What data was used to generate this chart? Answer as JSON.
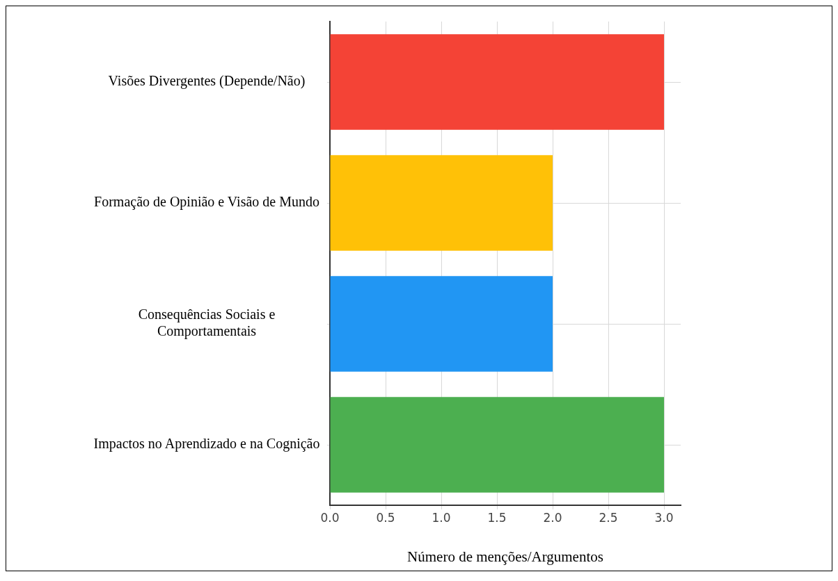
{
  "chart_data": {
    "type": "bar",
    "orientation": "horizontal",
    "categories": [
      "Visões Divergentes (Depende/Não)",
      "Formação de Opinião e Visão de Mundo",
      "Consequências Sociais e Comportamentais",
      "Impactos no Aprendizado e na Cognição"
    ],
    "values": [
      3,
      2,
      2,
      3
    ],
    "colors": [
      "#f44336",
      "#ffc107",
      "#2196f3",
      "#4caf50"
    ],
    "xlabel": "Número de menções/Argumentos",
    "xlim": [
      0,
      3.15
    ],
    "xticks": [
      {
        "value": 0,
        "label": "0.0"
      },
      {
        "value": 0.5,
        "label": "0.5"
      },
      {
        "value": 1,
        "label": "1.0"
      },
      {
        "value": 1.5,
        "label": "1.5"
      },
      {
        "value": 2,
        "label": "2.0"
      },
      {
        "value": 2.5,
        "label": "2.5"
      },
      {
        "value": 3,
        "label": "3.0"
      }
    ],
    "grid": true
  }
}
